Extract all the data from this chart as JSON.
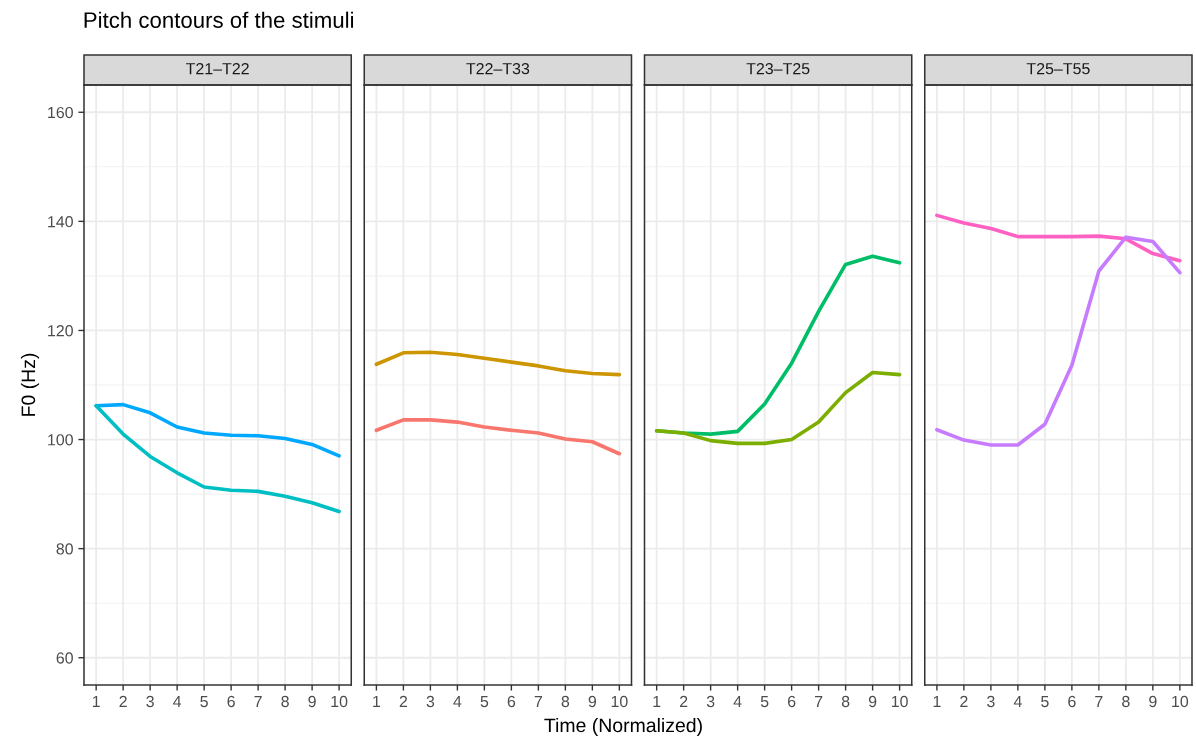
{
  "chart_data": [
    {
      "type": "line",
      "title": "Pitch contours of the stimuli",
      "subtitle": "T21–T22",
      "ylabel": "F0 (Hz)",
      "x": [
        1,
        2,
        3,
        4,
        5,
        6,
        7,
        8,
        9,
        10
      ],
      "xlim": [
        0.55,
        10.45
      ],
      "xticks": [
        1,
        2,
        3,
        4,
        5,
        6,
        7,
        8,
        9,
        10
      ],
      "ylim": [
        55,
        165
      ],
      "yticks": [
        60,
        80,
        100,
        120,
        140,
        160
      ],
      "grid": true,
      "legend": false,
      "series": [
        {
          "color": "#00a9ff",
          "values": [
            106.2,
            106.4,
            104.9,
            102.3,
            101.2,
            100.8,
            100.7,
            100.2,
            99.1,
            97.0
          ]
        },
        {
          "color": "#00bfc4",
          "values": [
            106.2,
            101.0,
            96.9,
            93.9,
            91.3,
            90.7,
            90.5,
            89.6,
            88.4,
            86.8
          ]
        }
      ]
    },
    {
      "type": "line",
      "subtitle": "T22–T33",
      "xlabel": "Time (Normalized)",
      "x": [
        1,
        2,
        3,
        4,
        5,
        6,
        7,
        8,
        9,
        10
      ],
      "xlim": [
        0.55,
        10.45
      ],
      "xticks": [
        1,
        2,
        3,
        4,
        5,
        6,
        7,
        8,
        9,
        10
      ],
      "ylim": [
        55,
        165
      ],
      "yticks": [
        60,
        80,
        100,
        120,
        140,
        160
      ],
      "grid": true,
      "legend": false,
      "tick_labels": "x",
      "series": [
        {
          "color": "#cd9600",
          "values": [
            113.8,
            115.9,
            116.0,
            115.6,
            114.9,
            114.2,
            113.5,
            112.6,
            112.1,
            111.9
          ]
        },
        {
          "color": "#f8766d",
          "values": [
            101.7,
            103.6,
            103.6,
            103.2,
            102.3,
            101.7,
            101.2,
            100.1,
            99.6,
            97.4
          ]
        }
      ]
    },
    {
      "type": "line",
      "subtitle": "T23–T25",
      "x": [
        1,
        2,
        3,
        4,
        5,
        6,
        7,
        8,
        9,
        10
      ],
      "xlim": [
        0.55,
        10.45
      ],
      "xticks": [
        1,
        2,
        3,
        4,
        5,
        6,
        7,
        8,
        9,
        10
      ],
      "ylim": [
        55,
        165
      ],
      "yticks": [
        60,
        80,
        100,
        120,
        140,
        160
      ],
      "grid": true,
      "legend": false,
      "tick_labels": "x",
      "series": [
        {
          "color": "#00be67",
          "values": [
            101.6,
            101.2,
            101.0,
            101.5,
            106.5,
            114.0,
            123.5,
            132.1,
            133.6,
            132.4
          ]
        },
        {
          "color": "#7cae00",
          "values": [
            101.6,
            101.2,
            99.8,
            99.3,
            99.3,
            100.0,
            103.2,
            108.6,
            112.3,
            111.9
          ]
        }
      ]
    },
    {
      "type": "line",
      "subtitle": "T25–T55",
      "x": [
        1,
        2,
        3,
        4,
        5,
        6,
        7,
        8,
        9,
        10
      ],
      "xlim": [
        0.55,
        10.45
      ],
      "xticks": [
        1,
        2,
        3,
        4,
        5,
        6,
        7,
        8,
        9,
        10
      ],
      "ylim": [
        55,
        165
      ],
      "yticks": [
        60,
        80,
        100,
        120,
        140,
        160
      ],
      "grid": true,
      "legend": false,
      "tick_labels": "x",
      "series": [
        {
          "color": "#ff61c3",
          "values": [
            141.1,
            139.7,
            138.7,
            137.2,
            137.2,
            137.2,
            137.3,
            136.8,
            134.1,
            132.8
          ]
        },
        {
          "color": "#c77cff",
          "values": [
            101.8,
            99.9,
            99.0,
            99.0,
            102.8,
            113.6,
            130.9,
            137.1,
            136.3,
            130.6
          ]
        }
      ]
    }
  ]
}
